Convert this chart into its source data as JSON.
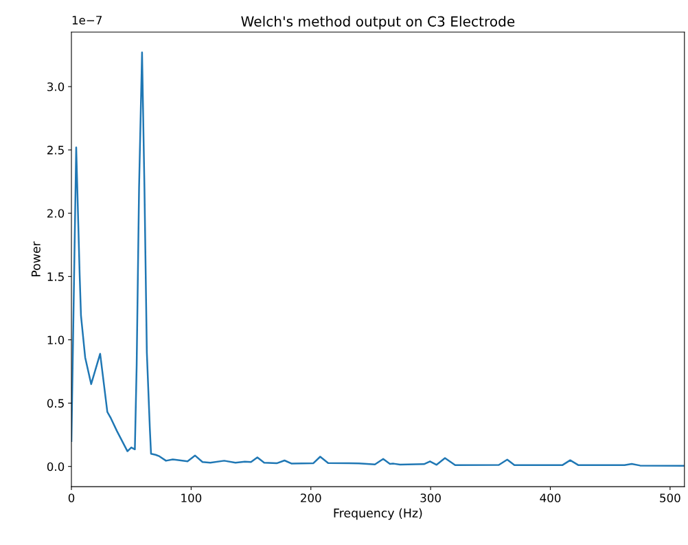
{
  "chart_data": {
    "type": "line",
    "title": "Welch's method output on C3 Electrode",
    "xlabel": "Frequency (Hz)",
    "ylabel": "Power",
    "annotations": [
      "1e−7"
    ],
    "x": [
      0,
      4,
      6.9,
      8,
      11.5,
      16.5,
      24,
      30,
      33,
      38,
      46.8,
      50,
      53,
      54.5,
      56.5,
      59,
      61,
      63,
      65.5,
      66.5,
      70.3,
      73.5,
      79,
      84.6,
      97,
      103.3,
      109.5,
      116,
      127.6,
      137,
      144.8,
      150,
      155.3,
      161,
      171.5,
      178,
      184,
      202,
      207.8,
      214.4,
      240,
      253.5,
      260.4,
      266,
      269,
      274.5,
      294.5,
      299.5,
      305,
      312,
      320.5,
      357,
      364,
      370,
      410,
      416.6,
      423.5,
      462,
      468,
      475,
      512
    ],
    "series": [
      {
        "color": "#1f77b4",
        "values": [
          0.2,
          2.52,
          1.51,
          1.19,
          0.86,
          0.65,
          0.89,
          0.43,
          0.38,
          0.28,
          0.12,
          0.15,
          0.135,
          0.8,
          2.2,
          3.27,
          2.2,
          0.9,
          0.3,
          0.1,
          0.092,
          0.08,
          0.045,
          0.055,
          0.04,
          0.086,
          0.035,
          0.03,
          0.045,
          0.03,
          0.038,
          0.035,
          0.072,
          0.03,
          0.025,
          0.047,
          0.022,
          0.025,
          0.077,
          0.027,
          0.024,
          0.016,
          0.059,
          0.02,
          0.022,
          0.015,
          0.018,
          0.04,
          0.013,
          0.066,
          0.01,
          0.012,
          0.054,
          0.01,
          0.01,
          0.049,
          0.01,
          0.01,
          0.02,
          0.007,
          0.005
        ]
      }
    ],
    "xlim": [
      0,
      512
    ],
    "xticks": [
      0,
      100,
      200,
      300,
      400,
      500
    ],
    "ylim": [
      -0.16,
      3.43
    ],
    "yticks": [
      {
        "value": 0,
        "label": "0.0"
      },
      {
        "value": 0.5,
        "label": "0.5"
      },
      {
        "value": 1,
        "label": "1.0"
      },
      {
        "value": 1.5,
        "label": "1.5"
      },
      {
        "value": 2,
        "label": "2.0"
      },
      {
        "value": 2.5,
        "label": "2.5"
      },
      {
        "value": 3,
        "label": "3.0"
      }
    ],
    "grid": false,
    "legend": false
  }
}
